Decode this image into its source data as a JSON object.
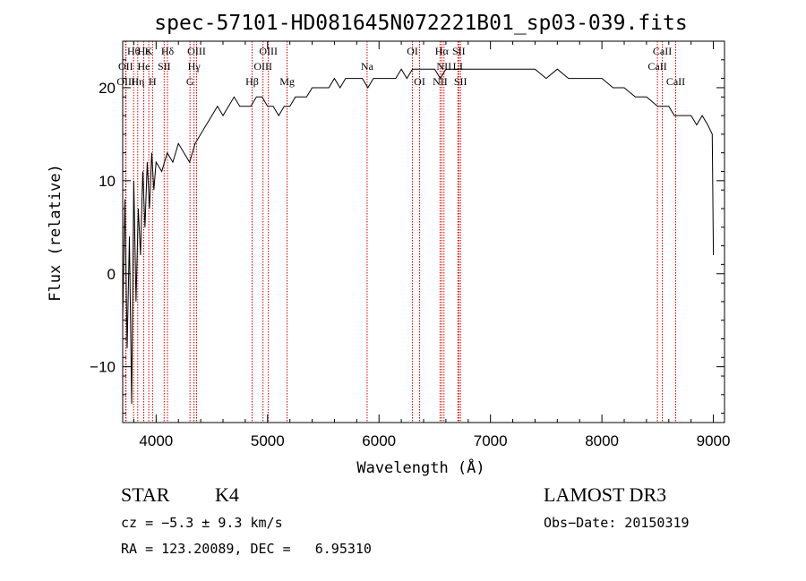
{
  "chart_data": {
    "type": "line",
    "title": "spec-57101-HD081645N072221B01_sp03-039.fits",
    "xlabel": "Wavelength (Å)",
    "ylabel": "Flux (relative)",
    "xlim": [
      3700,
      9100
    ],
    "ylim": [
      -16,
      25
    ],
    "x_ticks": [
      4000,
      5000,
      6000,
      7000,
      8000,
      9000
    ],
    "y_ticks": [
      -10,
      0,
      10,
      20
    ],
    "series": [
      {
        "name": "flux",
        "x": [
          3700,
          3720,
          3740,
          3760,
          3780,
          3800,
          3820,
          3840,
          3860,
          3880,
          3900,
          3920,
          3940,
          3960,
          3980,
          4000,
          4050,
          4100,
          4150,
          4200,
          4250,
          4300,
          4350,
          4400,
          4450,
          4500,
          4550,
          4600,
          4650,
          4700,
          4750,
          4800,
          4850,
          4900,
          4950,
          5000,
          5050,
          5100,
          5150,
          5200,
          5250,
          5300,
          5350,
          5400,
          5450,
          5500,
          5550,
          5600,
          5650,
          5700,
          5750,
          5800,
          5850,
          5900,
          5950,
          6000,
          6050,
          6100,
          6150,
          6200,
          6250,
          6300,
          6350,
          6400,
          6450,
          6500,
          6550,
          6600,
          6650,
          6700,
          6750,
          6800,
          6900,
          7000,
          7100,
          7200,
          7300,
          7400,
          7500,
          7600,
          7700,
          7800,
          7900,
          8000,
          8100,
          8200,
          8300,
          8400,
          8500,
          8550,
          8600,
          8650,
          8700,
          8750,
          8800,
          8850,
          8900,
          8950,
          8990,
          9000
        ],
        "y": [
          -5,
          8,
          -8,
          4,
          -14,
          10,
          -3,
          7,
          2,
          11,
          5,
          12,
          7,
          13,
          9,
          12,
          11,
          13,
          12,
          14,
          13,
          12,
          14,
          15,
          16,
          17,
          18,
          17,
          18,
          19,
          18,
          18,
          18,
          19,
          19,
          18,
          18,
          17,
          18,
          18,
          19,
          19,
          19,
          20,
          20,
          20,
          20,
          21,
          20,
          21,
          21,
          21,
          21,
          20,
          21,
          21,
          21,
          21,
          21,
          22,
          21,
          22,
          22,
          22,
          22,
          22,
          21,
          22,
          22,
          22,
          22,
          22,
          22,
          22,
          22,
          22,
          22,
          22,
          21,
          22,
          21,
          21,
          21,
          21,
          20,
          20,
          19,
          19,
          18,
          18,
          18,
          17,
          17,
          17,
          17,
          16,
          17,
          16,
          15,
          2
        ]
      }
    ],
    "spectral_lines": [
      {
        "label": "Hθ",
        "wavelength": 3798,
        "row": 0
      },
      {
        "label": "OII",
        "wavelength": 3727,
        "row": 1
      },
      {
        "label": "OIII",
        "wavelength": 3730,
        "row": 2
      },
      {
        "label": "Hε",
        "wavelength": 3889,
        "row": 0
      },
      {
        "label": "K",
        "wavelength": 3934,
        "row": 0
      },
      {
        "label": "He",
        "wavelength": 3889,
        "row": 1
      },
      {
        "label": "SII",
        "wavelength": 4072,
        "row": 1
      },
      {
        "label": "Hη",
        "wavelength": 3835,
        "row": 2
      },
      {
        "label": "H",
        "wavelength": 3968,
        "row": 2
      },
      {
        "label": "Hδ",
        "wavelength": 4102,
        "row": 0
      },
      {
        "label": "OIII",
        "wavelength": 4363,
        "row": 0
      },
      {
        "label": "Hγ",
        "wavelength": 4340,
        "row": 1
      },
      {
        "label": "G",
        "wavelength": 4304,
        "row": 2
      },
      {
        "label": "OIII",
        "wavelength": 5007,
        "row": 0
      },
      {
        "label": "OIII",
        "wavelength": 4959,
        "row": 1
      },
      {
        "label": "Hβ",
        "wavelength": 4861,
        "row": 2
      },
      {
        "label": "Mg",
        "wavelength": 5175,
        "row": 2
      },
      {
        "label": "Na",
        "wavelength": 5893,
        "row": 1
      },
      {
        "label": "OI",
        "wavelength": 6300,
        "row": 0
      },
      {
        "label": "OI",
        "wavelength": 6364,
        "row": 2
      },
      {
        "label": "Hα",
        "wavelength": 6563,
        "row": 0
      },
      {
        "label": "SII",
        "wavelength": 6716,
        "row": 0
      },
      {
        "label": "NII",
        "wavelength": 6583,
        "row": 1
      },
      {
        "label": "LI",
        "wavelength": 6708,
        "row": 1
      },
      {
        "label": "NII",
        "wavelength": 6548,
        "row": 2
      },
      {
        "label": "SII",
        "wavelength": 6731,
        "row": 2
      },
      {
        "label": "CaII",
        "wavelength": 8542,
        "row": 0
      },
      {
        "label": "CaII",
        "wavelength": 8498,
        "row": 1
      },
      {
        "label": "CaII",
        "wavelength": 8662,
        "row": 2
      }
    ]
  },
  "info": {
    "class": "STAR",
    "subclass": "K4",
    "survey": "LAMOST DR3",
    "cz": "cz = −5.3 ± 9.3 km/s",
    "obs_date": "Obs−Date: 20150319",
    "coords": "RA = 123.20089, DEC =   6.95310"
  },
  "colors": {
    "line_marker": "#cc0000",
    "spectrum": "#000000",
    "axes": "#000000"
  }
}
